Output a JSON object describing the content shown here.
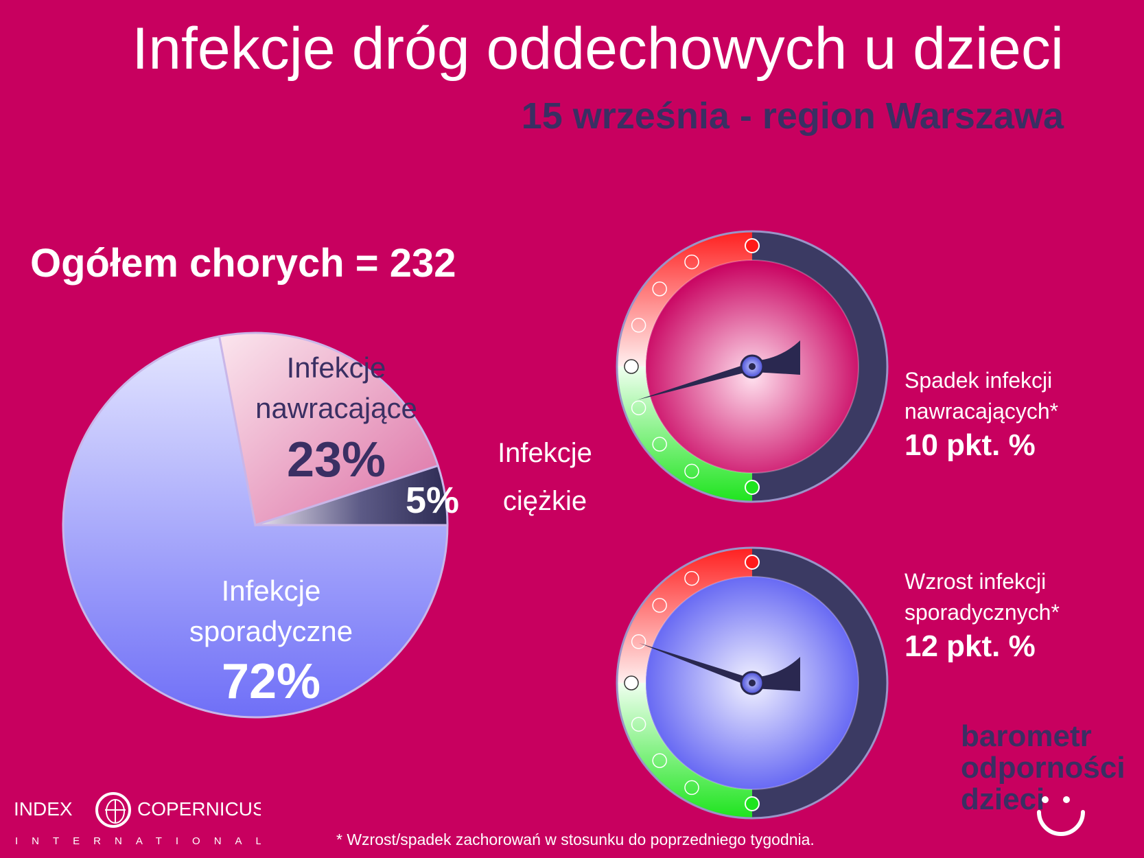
{
  "title": "Infekcje dróg oddechowych u dzieci",
  "subtitle": "15 września - region Warszawa",
  "total_label": "Ogółem chorych = 232",
  "colors": {
    "background": "#c8005f",
    "dark": "#3a2f63",
    "sporadic": "#8f95ff",
    "recurrent": "#ee8fb8",
    "severe": "#3d3b62"
  },
  "chart_data": [
    {
      "type": "pie",
      "slices": [
        {
          "label_lines": [
            "Infekcje",
            "sporadyczne"
          ],
          "value": 72,
          "value_label": "72%"
        },
        {
          "label_lines": [
            "Infekcje",
            "nawracające"
          ],
          "value": 23,
          "value_label": "23%"
        },
        {
          "label_lines": [
            "Infekcje",
            "ciężkie"
          ],
          "value": 5,
          "value_label": "5%"
        }
      ]
    },
    {
      "type": "gauge",
      "lines": [
        "Spadek infekcji",
        "nawracających*"
      ],
      "value_label": "10 pkt. %",
      "direction": "decrease",
      "value": -10
    },
    {
      "type": "gauge",
      "lines": [
        "Wzrost infekcji",
        "sporadycznych*"
      ],
      "value_label": "12 pkt. %",
      "direction": "increase",
      "value": 12
    }
  ],
  "logo_brand_lines": [
    "barometr",
    "odporności",
    "dzieci"
  ],
  "logo_ic": {
    "line1_left": "INDEX",
    "line1_right": "COPERNICUS",
    "line2": "INTERNATIONAL"
  },
  "footnote": "* Wzrost/spadek zachorowań w stosunku do poprzedniego tygodnia."
}
